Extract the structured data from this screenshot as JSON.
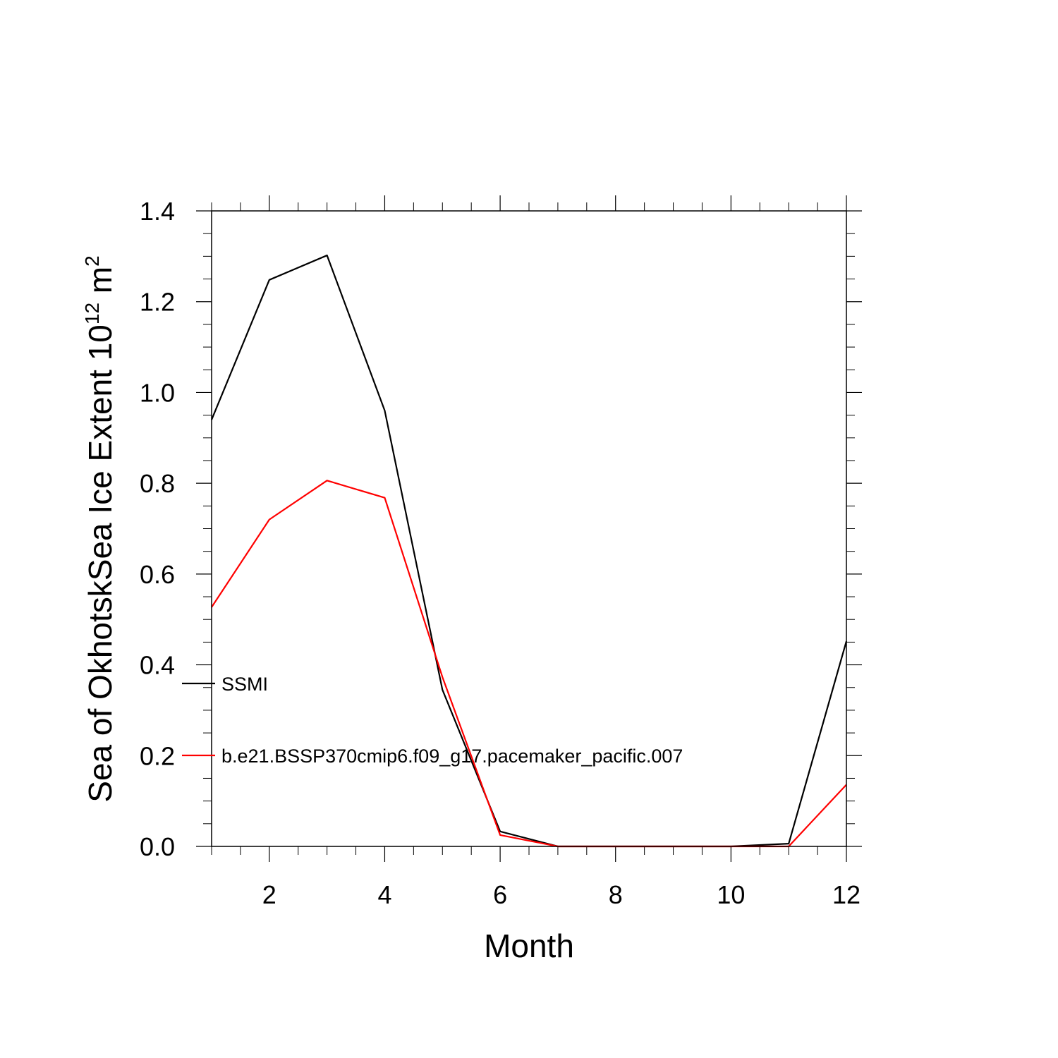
{
  "chart_data": {
    "type": "line",
    "xlabel": "Month",
    "ylabel": {
      "main": "Sea of OkhotskSea Ice Extent 10",
      "exponent": "12",
      "unit": " m",
      "unit_exponent": "2"
    },
    "xlim": [
      1,
      12
    ],
    "ylim": [
      0,
      1.4
    ],
    "x_ticks": [
      2,
      4,
      6,
      8,
      10,
      12
    ],
    "x_tick_labels": [
      "2",
      "4",
      "6",
      "8",
      "10",
      "12"
    ],
    "y_ticks": [
      0,
      0.2,
      0.4,
      0.6,
      0.8,
      1.0,
      1.2,
      1.4
    ],
    "y_tick_labels": [
      "0.0",
      "0.2",
      "0.4",
      "0.6",
      "0.8",
      "1.0",
      "1.2",
      "1.4"
    ],
    "x_minor_step": 0.5,
    "y_minor_step": 0.05,
    "grid": false,
    "legend_position": "left-inside",
    "x": [
      1,
      2,
      3,
      4,
      5,
      6,
      7,
      8,
      9,
      10,
      11,
      12
    ],
    "series": [
      {
        "name": "SSMI",
        "color": "#000000",
        "values": [
          0.94,
          1.248,
          1.302,
          0.96,
          0.345,
          0.033,
          0.0,
          0.0,
          0.0,
          0.0,
          0.006,
          0.452
        ]
      },
      {
        "name": "b.e21.BSSP370cmip6.f09_g17.pacemaker_pacific.007",
        "color": "#ff0000",
        "values": [
          0.527,
          0.72,
          0.806,
          0.768,
          0.373,
          0.025,
          0.0,
          0.0,
          0.0,
          0.0,
          0.0,
          0.136
        ]
      }
    ]
  }
}
